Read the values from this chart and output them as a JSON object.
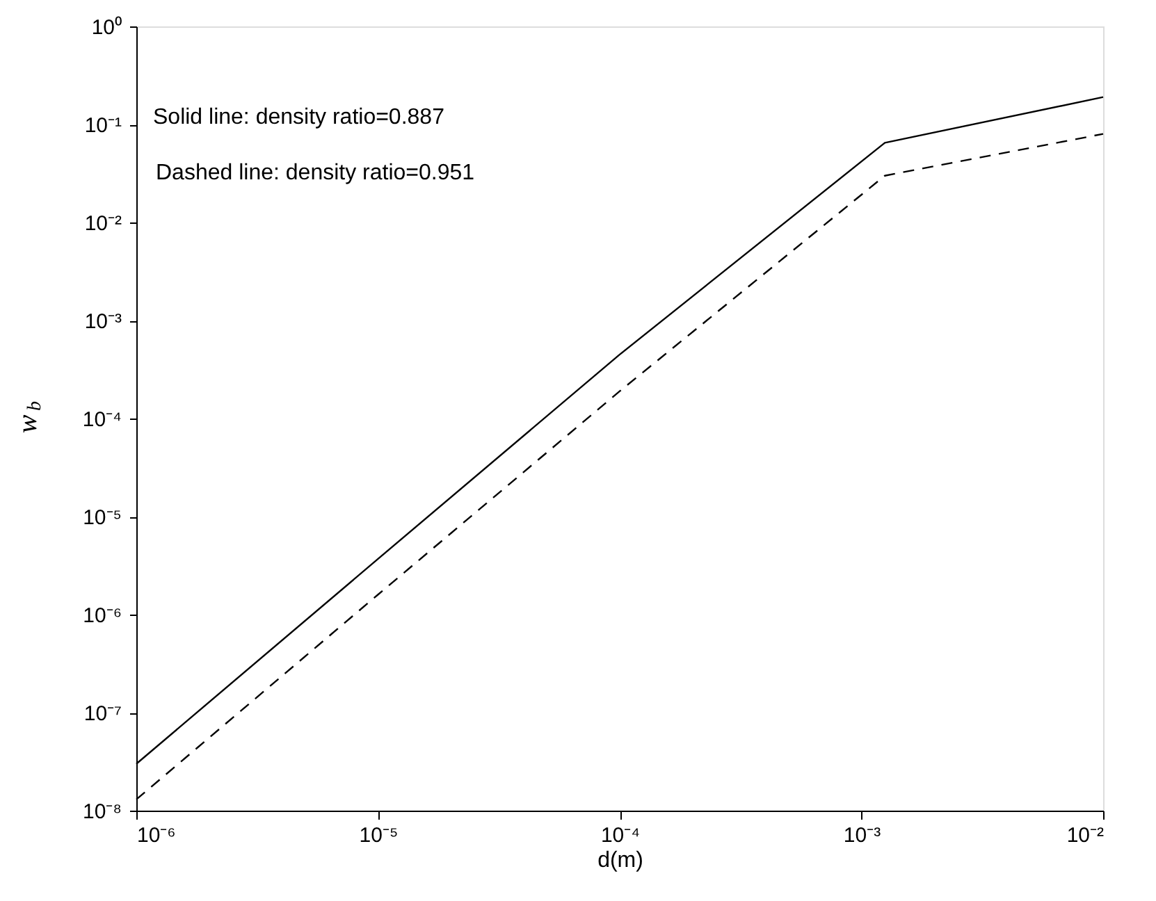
{
  "chart_data": {
    "type": "line",
    "xlabel": "d(m)",
    "ylabel": "w$_{b}$",
    "log": "xy",
    "grid": false,
    "marker": "none",
    "xlim": [
      1e-06,
      0.01
    ],
    "ylim": [
      1e-08,
      1
    ],
    "xticks": [
      {
        "value": 1e-06,
        "label": "10⁻⁶"
      },
      {
        "value": 1e-05,
        "label": "10⁻⁵"
      },
      {
        "value": 0.0001,
        "label": "10⁻⁴"
      },
      {
        "value": 0.001,
        "label": "10⁻³"
      },
      {
        "value": 0.01,
        "label": "10⁻²"
      }
    ],
    "yticks": [
      {
        "value": 1e-08,
        "label": "10⁻⁸"
      },
      {
        "value": 1e-07,
        "label": "10⁻⁷"
      },
      {
        "value": 1e-06,
        "label": "10⁻⁶"
      },
      {
        "value": 1e-05,
        "label": "10⁻⁵"
      },
      {
        "value": 0.0001,
        "label": "10⁻⁴"
      },
      {
        "value": 0.001,
        "label": "10⁻³"
      },
      {
        "value": 0.01,
        "label": "10⁻²"
      },
      {
        "value": 0.1,
        "label": "10⁻¹"
      },
      {
        "value": 1,
        "label": "10⁰"
      }
    ],
    "annotations": [
      "Solid line: density ratio=0.887",
      "Dashed line: density ratio=0.951"
    ],
    "series": [
      {
        "color": "#000000",
        "line_style": "solid",
        "x": [
          1e-06,
          1e-05,
          0.0001,
          0.00125,
          0.01
        ],
        "values": [
          3e-08,
          3.7e-06,
          0.00045,
          0.065,
          0.19
        ]
      },
      {
        "color": "#000000",
        "line_style": "dashed",
        "x": [
          1e-06,
          1e-05,
          0.0001,
          0.00125,
          0.01
        ],
        "values": [
          1.3e-08,
          1.6e-06,
          0.00019,
          0.03,
          0.08
        ]
      }
    ]
  }
}
